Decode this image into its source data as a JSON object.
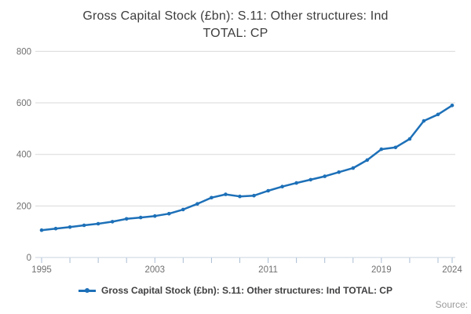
{
  "title_lines": [
    "Gross Capital Stock (£bn): S.11: Other structures: Ind",
    "TOTAL: CP"
  ],
  "legend": {
    "label": "Gross Capital Stock (£bn): S.11: Other structures: Ind TOTAL: CP"
  },
  "source_label": "Source:",
  "colors": {
    "series": "#1d70b8",
    "grid": "#d9d9d9",
    "axis_line": "#c9d3df",
    "tick_mark": "#a9bdd4",
    "axis_label": "#707070"
  },
  "chart_data": {
    "type": "line",
    "title": "Gross Capital Stock (£bn): S.11: Other structures: Ind TOTAL: CP",
    "series_name": "Gross Capital Stock (£bn): S.11: Other structures: Ind TOTAL: CP",
    "x": [
      1995,
      1996,
      1997,
      1998,
      1999,
      2000,
      2001,
      2002,
      2003,
      2004,
      2005,
      2006,
      2007,
      2008,
      2009,
      2010,
      2011,
      2012,
      2013,
      2014,
      2015,
      2016,
      2017,
      2018,
      2019,
      2020,
      2021,
      2022,
      2023,
      2024
    ],
    "values": [
      106,
      112,
      118,
      125,
      131,
      139,
      150,
      155,
      161,
      170,
      186,
      208,
      232,
      245,
      237,
      240,
      259,
      275,
      289,
      302,
      315,
      331,
      347,
      378,
      420,
      427,
      460,
      530,
      555,
      590
    ],
    "xlabel": "",
    "ylabel": "",
    "x_range": [
      1995,
      2024
    ],
    "ylim": [
      0,
      800
    ],
    "yticks": [
      0,
      200,
      400,
      600,
      800
    ],
    "xticks": [
      1995,
      1997,
      1999,
      2001,
      2003,
      2005,
      2007,
      2009,
      2011,
      2013,
      2015,
      2017,
      2019,
      2021,
      2023,
      2024
    ],
    "xtick_labels": [
      1995,
      2003,
      2011,
      2019,
      2024
    ],
    "grid": "horizontal",
    "legend_position": "bottom"
  }
}
